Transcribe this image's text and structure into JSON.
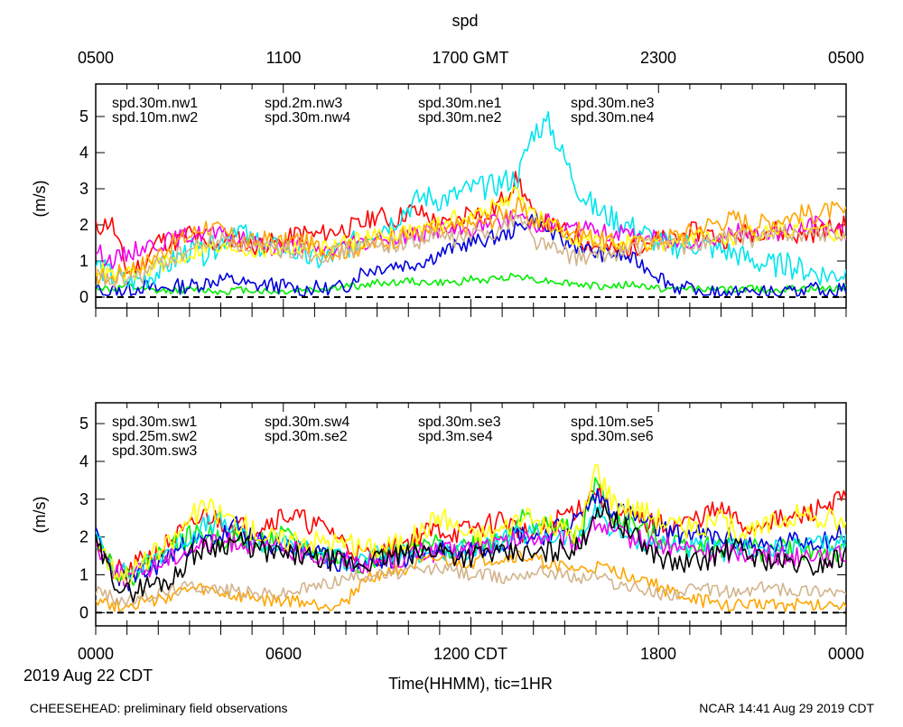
{
  "figure": {
    "title": "spd",
    "top_axis_ticks": [
      "0500",
      "1100",
      "1700 GMT",
      "2300",
      "0500"
    ],
    "bottom_axis_ticks": [
      "0000",
      "0600",
      "1200 CDT",
      "1800",
      "0000"
    ],
    "date_label": "2019 Aug 22 CDT",
    "xlabel": "Time(HHMM), tic=1HR",
    "footer_left": "CHEESEHEAD: preliminary field observations",
    "footer_right": "NCAR 14:41 Aug 29 2019 CDT"
  },
  "chart_data": [
    {
      "type": "line",
      "panel": "top",
      "ylabel": "(m/s)",
      "ylim": [
        -0.3,
        5.9
      ],
      "yticks": [
        0,
        1,
        2,
        3,
        4,
        5
      ],
      "xlim_hours": [
        0,
        24
      ],
      "reference_line": 0,
      "series": [
        {
          "name": "spd.30m.nw1",
          "color": "#ff0000",
          "base": [
            1.9,
            2.1,
            0.7,
            0.9,
            1.6,
            1.5,
            1.8,
            1.4,
            1.5,
            1.6,
            1.4,
            1.5,
            1.5,
            1.8,
            1.7,
            1.8,
            1.9,
            2.0,
            2.3,
            2.1,
            2.4,
            2.3,
            2.0,
            2.0,
            2.5,
            2.2,
            2.7,
            3.3,
            2.2,
            2.0,
            1.8,
            1.6,
            1.4,
            1.3,
            1.3,
            1.5,
            1.6,
            1.6,
            1.8,
            1.8,
            1.6,
            1.7,
            1.8,
            1.9,
            1.8,
            1.7,
            1.8,
            1.9,
            2.0
          ],
          "noise": 0.28,
          "seed": 11
        },
        {
          "name": "spd.10m.nw2",
          "color": "#00ee00",
          "base": [
            0.3,
            0.2,
            0.3,
            0.2,
            0.15,
            0.2,
            0.2,
            0.2,
            0.15,
            0.2,
            0.2,
            0.15,
            0.15,
            0.2,
            0.2,
            0.25,
            0.3,
            0.3,
            0.4,
            0.4,
            0.45,
            0.4,
            0.4,
            0.4,
            0.5,
            0.45,
            0.55,
            0.6,
            0.5,
            0.45,
            0.4,
            0.35,
            0.3,
            0.3,
            0.35,
            0.3,
            0.25,
            0.2,
            0.25,
            0.25,
            0.2,
            0.2,
            0.25,
            0.2,
            0.2,
            0.25,
            0.2,
            0.25,
            0.3
          ],
          "noise": 0.1,
          "seed": 12
        },
        {
          "name": "spd.2m.nw3",
          "color": "#0000dd",
          "base": [
            0.2,
            0.15,
            0.2,
            0.3,
            0.2,
            0.3,
            0.3,
            0.4,
            0.5,
            0.45,
            0.3,
            0.35,
            0.3,
            0.2,
            0.25,
            0.2,
            0.3,
            0.7,
            0.8,
            0.9,
            0.9,
            1.0,
            1.2,
            1.4,
            1.5,
            1.6,
            1.7,
            1.9,
            2.2,
            1.8,
            1.5,
            1.4,
            1.2,
            1.2,
            1.1,
            0.9,
            0.6,
            0.3,
            0.2,
            0.15,
            0.1,
            0.1,
            0.15,
            0.1,
            0.1,
            0.1,
            0.2,
            0.2,
            0.2
          ],
          "noise": 0.22,
          "seed": 13
        },
        {
          "name": "spd.30m.nw4",
          "color": "#00e5ee",
          "base": [
            0.9,
            0.6,
            0.4,
            0.5,
            0.7,
            1.0,
            1.3,
            1.2,
            1.5,
            2.0,
            1.5,
            1.3,
            1.4,
            1.2,
            1.0,
            1.1,
            1.4,
            1.6,
            1.9,
            2.1,
            2.5,
            2.8,
            2.7,
            2.8,
            3.0,
            3.0,
            3.2,
            3.3,
            4.6,
            4.8,
            3.8,
            2.9,
            2.4,
            2.2,
            2.0,
            1.8,
            1.5,
            1.4,
            1.5,
            1.4,
            1.3,
            1.2,
            1.0,
            0.9,
            0.9,
            0.8,
            0.7,
            0.6,
            0.7
          ],
          "noise": 0.35,
          "seed": 14
        },
        {
          "name": "spd.30m.ne1",
          "color": "#ee00ee",
          "base": [
            1.3,
            1.0,
            1.2,
            1.4,
            1.5,
            1.6,
            1.7,
            1.8,
            1.7,
            1.6,
            1.5,
            1.4,
            1.4,
            1.4,
            1.3,
            1.3,
            1.4,
            1.5,
            1.6,
            1.7,
            1.7,
            1.8,
            1.9,
            1.8,
            1.9,
            2.0,
            2.1,
            2.3,
            2.0,
            2.1,
            1.9,
            1.9,
            1.8,
            1.8,
            1.7,
            1.7,
            1.6,
            1.5,
            1.6,
            1.6,
            1.7,
            1.8,
            1.7,
            1.8,
            1.8,
            1.9,
            2.0,
            1.9,
            1.8
          ],
          "noise": 0.25,
          "seed": 15
        },
        {
          "name": "spd.30m.ne2",
          "color": "#ffff00",
          "base": [
            0.8,
            0.6,
            0.6,
            0.7,
            0.9,
            1.0,
            1.2,
            1.4,
            1.3,
            1.4,
            1.3,
            1.3,
            1.3,
            1.4,
            1.3,
            1.4,
            1.5,
            1.6,
            1.7,
            1.8,
            1.8,
            1.9,
            2.0,
            2.2,
            2.2,
            2.4,
            2.6,
            2.9,
            2.3,
            2.0,
            1.8,
            1.6,
            1.5,
            1.5,
            1.5,
            1.4,
            1.5,
            1.5,
            1.6,
            1.7,
            1.6,
            1.6,
            1.8,
            1.8,
            1.9,
            2.0,
            1.9,
            1.8,
            1.7
          ],
          "noise": 0.25,
          "seed": 16
        },
        {
          "name": "spd.30m.ne3",
          "color": "#ffa500",
          "base": [
            0.6,
            0.5,
            0.8,
            0.9,
            1.2,
            1.5,
            1.7,
            2.0,
            1.8,
            1.6,
            1.5,
            1.6,
            1.5,
            1.6,
            1.4,
            1.3,
            1.3,
            1.4,
            1.5,
            1.6,
            1.7,
            1.8,
            1.8,
            1.9,
            2.0,
            2.1,
            2.3,
            2.5,
            2.1,
            2.0,
            1.9,
            1.8,
            1.6,
            1.5,
            1.4,
            1.5,
            1.6,
            1.7,
            1.8,
            2.0,
            2.1,
            2.2,
            2.0,
            2.1,
            2.2,
            2.3,
            2.3,
            2.4,
            2.3
          ],
          "noise": 0.28,
          "seed": 17
        },
        {
          "name": "spd.30m.ne4",
          "color": "#d2b48c",
          "base": [
            0.6,
            0.4,
            0.5,
            0.6,
            0.9,
            1.1,
            1.3,
            1.5,
            1.6,
            1.5,
            1.4,
            1.3,
            1.3,
            1.3,
            1.2,
            1.2,
            1.3,
            1.4,
            1.4,
            1.5,
            1.5,
            1.6,
            1.7,
            1.6,
            1.7,
            1.8,
            1.9,
            2.3,
            1.6,
            1.4,
            1.2,
            1.1,
            1.1,
            1.2,
            1.3,
            1.4,
            1.5,
            1.5,
            1.4,
            1.5,
            1.6,
            1.7,
            1.6,
            1.7,
            1.8,
            1.8,
            1.7,
            1.8,
            1.7
          ],
          "noise": 0.25,
          "seed": 18
        }
      ]
    },
    {
      "type": "line",
      "panel": "bottom",
      "ylabel": "(m/s)",
      "ylim": [
        -0.35,
        5.55
      ],
      "yticks": [
        0,
        1,
        2,
        3,
        4,
        5
      ],
      "xlim_hours": [
        0,
        24
      ],
      "reference_line": 0,
      "series": [
        {
          "name": "spd.30m.sw1",
          "color": "#ff0000",
          "base": [
            2.0,
            1.2,
            1.0,
            1.4,
            1.6,
            2.0,
            2.2,
            2.6,
            2.4,
            2.3,
            2.2,
            2.4,
            2.6,
            2.5,
            2.3,
            2.2,
            1.8,
            1.5,
            1.5,
            1.7,
            1.9,
            2.1,
            2.2,
            2.1,
            2.2,
            2.3,
            2.5,
            2.2,
            2.0,
            2.3,
            2.6,
            2.8,
            3.3,
            2.6,
            2.5,
            2.4,
            2.3,
            2.3,
            2.4,
            2.6,
            2.7,
            2.4,
            2.2,
            2.5,
            2.4,
            2.5,
            2.7,
            2.9,
            3.0
          ],
          "noise": 0.3,
          "seed": 21
        },
        {
          "name": "spd.25m.sw2",
          "color": "#00ee00",
          "base": [
            2.0,
            1.3,
            0.9,
            1.2,
            1.5,
            1.8,
            2.0,
            2.1,
            2.0,
            1.9,
            1.8,
            1.9,
            2.0,
            1.8,
            1.6,
            1.5,
            1.4,
            1.3,
            1.4,
            1.5,
            1.6,
            1.7,
            1.8,
            1.7,
            1.8,
            1.9,
            2.0,
            2.5,
            2.4,
            2.3,
            2.2,
            2.0,
            3.5,
            2.5,
            2.4,
            2.2,
            2.0,
            1.9,
            1.8,
            1.8,
            1.7,
            1.8,
            1.7,
            1.6,
            1.7,
            1.7,
            1.6,
            1.6,
            1.5
          ],
          "noise": 0.3,
          "seed": 22
        },
        {
          "name": "spd.30m.sw3",
          "color": "#0000dd",
          "base": [
            2.0,
            1.2,
            0.8,
            1.0,
            1.3,
            1.6,
            1.8,
            1.9,
            2.0,
            2.3,
            1.9,
            1.8,
            1.8,
            1.7,
            1.5,
            1.4,
            1.3,
            1.3,
            1.3,
            1.4,
            1.5,
            1.6,
            1.7,
            1.6,
            1.7,
            1.8,
            1.9,
            2.1,
            2.0,
            2.1,
            2.3,
            2.5,
            3.1,
            2.8,
            2.6,
            2.4,
            2.2,
            2.1,
            2.1,
            2.0,
            2.0,
            1.9,
            1.8,
            1.7,
            1.8,
            1.9,
            1.9,
            2.0,
            2.1
          ],
          "noise": 0.3,
          "seed": 23
        },
        {
          "name": "spd.30m.sw4",
          "color": "#00e5ee",
          "base": [
            2.0,
            1.3,
            1.0,
            1.2,
            1.5,
            1.8,
            2.0,
            2.3,
            2.4,
            2.1,
            1.9,
            1.8,
            1.8,
            1.7,
            1.6,
            1.5,
            1.4,
            1.4,
            1.5,
            1.5,
            1.6,
            1.6,
            1.7,
            1.6,
            1.7,
            1.7,
            1.9,
            2.0,
            2.1,
            2.0,
            2.0,
            1.9,
            2.8,
            2.2,
            2.0,
            1.9,
            1.8,
            1.8,
            1.7,
            1.7,
            1.6,
            1.7,
            1.7,
            1.6,
            1.7,
            1.7,
            1.8,
            1.8,
            1.9
          ],
          "noise": 0.28,
          "seed": 24
        },
        {
          "name": "spd.30m.se2",
          "color": "#ee00ee",
          "base": [
            1.8,
            1.2,
            0.9,
            1.1,
            1.3,
            1.5,
            1.7,
            1.8,
            1.8,
            1.9,
            1.8,
            1.7,
            1.7,
            1.6,
            1.5,
            1.5,
            1.4,
            1.3,
            1.4,
            1.4,
            1.5,
            1.6,
            1.6,
            1.6,
            1.7,
            1.8,
            1.8,
            1.9,
            2.0,
            2.0,
            1.9,
            1.9,
            2.4,
            2.1,
            2.0,
            1.9,
            1.8,
            1.7,
            1.7,
            1.6,
            1.6,
            1.6,
            1.6,
            1.5,
            1.5,
            1.5,
            1.6,
            1.5,
            1.5
          ],
          "noise": 0.28,
          "seed": 25
        },
        {
          "name": "spd.30m.se3",
          "color": "#ffff00",
          "base": [
            2.1,
            1.2,
            1.0,
            1.3,
            1.6,
            1.9,
            2.5,
            2.8,
            2.6,
            2.4,
            2.2,
            2.0,
            1.9,
            2.0,
            1.9,
            1.9,
            1.8,
            1.7,
            1.7,
            1.8,
            1.9,
            2.2,
            2.6,
            2.3,
            2.0,
            2.1,
            2.2,
            2.5,
            2.4,
            2.3,
            2.2,
            2.1,
            3.9,
            3.0,
            2.8,
            2.7,
            2.5,
            2.3,
            2.2,
            2.3,
            2.4,
            2.2,
            2.1,
            2.3,
            2.5,
            2.6,
            2.4,
            2.5,
            2.3
          ],
          "noise": 0.32,
          "seed": 26
        },
        {
          "name": "spd.3m.se4",
          "color": "#ffa500",
          "base": [
            0.4,
            0.2,
            0.2,
            0.3,
            0.3,
            0.5,
            0.6,
            0.6,
            0.5,
            0.4,
            0.4,
            0.3,
            0.3,
            0.3,
            0.2,
            0.2,
            0.3,
            0.8,
            1.0,
            1.1,
            1.2,
            1.3,
            1.4,
            1.3,
            1.3,
            1.4,
            1.4,
            1.5,
            1.4,
            1.3,
            1.2,
            1.1,
            1.2,
            1.1,
            1.0,
            0.9,
            0.7,
            0.5,
            0.4,
            0.3,
            0.2,
            0.2,
            0.2,
            0.3,
            0.2,
            0.2,
            0.2,
            0.2,
            0.3
          ],
          "noise": 0.18,
          "seed": 27
        },
        {
          "name": "spd.10m.se5",
          "color": "#d2b48c",
          "base": [
            0.6,
            0.4,
            0.3,
            0.4,
            0.5,
            0.6,
            0.7,
            0.7,
            0.6,
            0.6,
            0.5,
            0.5,
            0.5,
            0.6,
            0.7,
            0.8,
            0.9,
            1.0,
            1.0,
            1.0,
            1.1,
            1.1,
            1.2,
            1.1,
            1.0,
            1.0,
            0.9,
            1.0,
            1.1,
            1.1,
            1.0,
            0.9,
            1.0,
            0.8,
            0.7,
            0.6,
            0.5,
            0.5,
            0.6,
            0.6,
            0.6,
            0.5,
            0.6,
            0.7,
            0.6,
            0.6,
            0.6,
            0.6,
            0.5
          ],
          "noise": 0.18,
          "seed": 28
        },
        {
          "name": "spd.30m.se6",
          "color": "#000000",
          "base": [
            1.8,
            1.0,
            0.5,
            0.7,
            0.8,
            0.9,
            1.5,
            1.7,
            1.8,
            1.9,
            1.7,
            1.6,
            1.5,
            1.5,
            1.4,
            1.4,
            1.3,
            1.3,
            1.4,
            1.5,
            1.5,
            1.6,
            1.7,
            1.5,
            1.5,
            1.6,
            1.5,
            1.6,
            1.5,
            1.6,
            1.7,
            1.7,
            2.8,
            2.5,
            2.2,
            1.8,
            1.5,
            1.3,
            1.3,
            1.4,
            1.6,
            1.7,
            1.5,
            1.4,
            1.3,
            1.3,
            1.2,
            1.4,
            1.5
          ],
          "noise": 0.3,
          "seed": 29
        }
      ]
    }
  ]
}
